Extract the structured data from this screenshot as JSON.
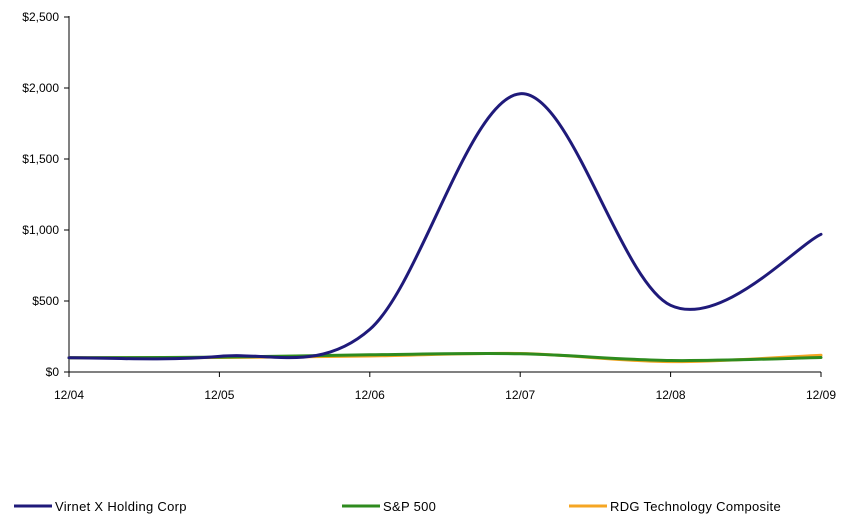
{
  "chart_data": {
    "type": "line",
    "x": [
      "12/04",
      "12/05",
      "12/06",
      "12/07",
      "12/08",
      "12/09"
    ],
    "ylim": [
      0,
      2500
    ],
    "yticks": [
      0,
      500,
      1000,
      1500,
      2000,
      2500
    ],
    "ytick_labels": [
      "$0",
      "$500",
      "$1,000",
      "$1,500",
      "$2,000",
      "$2,500"
    ],
    "grid": false,
    "legend_position": "bottom",
    "series": [
      {
        "name": "Virnet X Holding Corp",
        "color": "#1f1a7a",
        "values": [
          100,
          110,
          300,
          1960,
          470,
          970
        ]
      },
      {
        "name": "S&P 500",
        "color": "#2e8b1e",
        "values": [
          100,
          105,
          121,
          128,
          81,
          102
        ]
      },
      {
        "name": "RDG Technology Composite",
        "color": "#f5a623",
        "values": [
          100,
          102,
          113,
          130,
          73,
          118
        ]
      }
    ]
  }
}
